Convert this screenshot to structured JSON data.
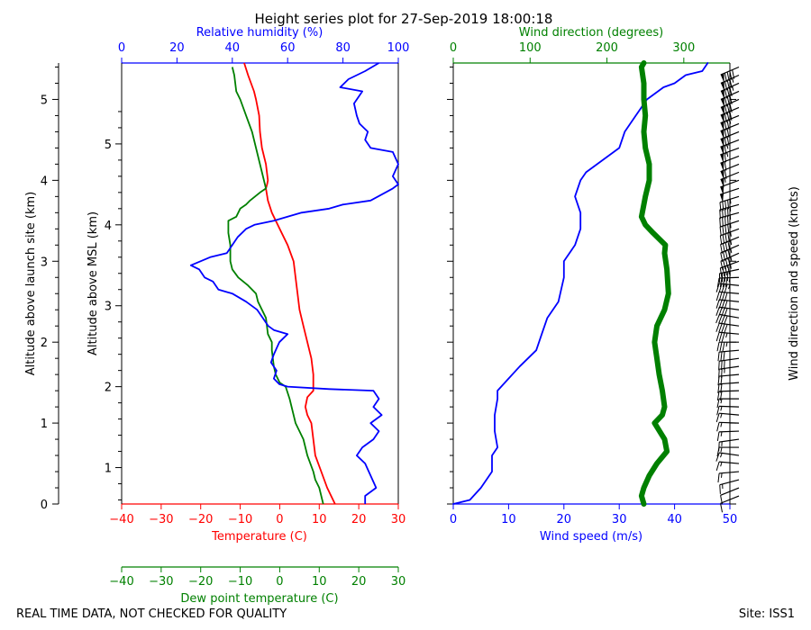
{
  "title": "Height series plot for 27-Sep-2019 18:00:18",
  "footer_left": "REAL TIME DATA, NOT CHECKED FOR QUALITY",
  "footer_right": "Site: ISS1",
  "colors": {
    "temperature": "#ff0000",
    "dewpoint": "#008000",
    "humidity": "#0000ff",
    "wind_speed": "#0000ff",
    "wind_direction": "#008000",
    "barbs": "#000000"
  },
  "chart_data": [
    {
      "type": "line",
      "panel": "thermo",
      "ylabel_outer": "Altitude above launch site (km)",
      "ylabel_inner": "Altitude above MSL (km)",
      "y_outer_ticks": [
        "0",
        "1",
        "2",
        "3",
        "4",
        "5"
      ],
      "y_inner_ticks": [
        "1",
        "2",
        "3",
        "4",
        "5"
      ],
      "ylim_agl_km": [
        0,
        5.45
      ],
      "msl_offset_km": 0.55,
      "axes": {
        "temperature": {
          "label": "Temperature (C)",
          "lim": [
            -40,
            30
          ],
          "ticks": [
            "−40",
            "−30",
            "−20",
            "−10",
            "0",
            "10",
            "20",
            "30"
          ]
        },
        "dewpoint": {
          "label": "Dew point temperature (C)",
          "lim": [
            -40,
            30
          ],
          "ticks": [
            "−40",
            "−30",
            "−20",
            "−10",
            "0",
            "10",
            "20",
            "30"
          ]
        },
        "humidity": {
          "label": "Relative humidity (%)",
          "lim": [
            0,
            100
          ],
          "ticks": [
            "0",
            "20",
            "40",
            "60",
            "80",
            "100"
          ]
        }
      },
      "series": [
        {
          "name": "Temperature (C)",
          "axis": "temperature",
          "color": "#ff0000",
          "points": [
            [
              14,
              0
            ],
            [
              12,
              0.2
            ],
            [
              10.5,
              0.4
            ],
            [
              9,
              0.6
            ],
            [
              8.5,
              0.8
            ],
            [
              8,
              1
            ],
            [
              7,
              1.1
            ],
            [
              6.5,
              1.2
            ],
            [
              7,
              1.32
            ],
            [
              8.5,
              1.4
            ],
            [
              8.5,
              1.5
            ],
            [
              8.5,
              1.6
            ],
            [
              8,
              1.8
            ],
            [
              7,
              2
            ],
            [
              6,
              2.2
            ],
            [
              5,
              2.4
            ],
            [
              4.5,
              2.6
            ],
            [
              4,
              2.8
            ],
            [
              3.5,
              3.0
            ],
            [
              2,
              3.2
            ],
            [
              0,
              3.4
            ],
            [
              -2,
              3.6
            ],
            [
              -3,
              3.75
            ],
            [
              -3.5,
              3.9
            ],
            [
              -3.2,
              3.95
            ],
            [
              -3,
              4.0
            ],
            [
              -3.5,
              4.2
            ],
            [
              -4.5,
              4.4
            ],
            [
              -5,
              4.6
            ],
            [
              -5.2,
              4.8
            ],
            [
              -6,
              5.0
            ],
            [
              -6.5,
              5.1
            ],
            [
              -8,
              5.3
            ],
            [
              -9,
              5.45
            ]
          ]
        },
        {
          "name": "Dew point temperature (C)",
          "axis": "dewpoint",
          "color": "#008000",
          "points": [
            [
              11,
              0
            ],
            [
              10,
              0.2
            ],
            [
              9,
              0.3
            ],
            [
              8.5,
              0.4
            ],
            [
              7,
              0.6
            ],
            [
              6,
              0.8
            ],
            [
              4,
              1.0
            ],
            [
              3,
              1.2
            ],
            [
              2.5,
              1.3
            ],
            [
              1.5,
              1.45
            ],
            [
              0,
              1.5
            ],
            [
              -1,
              1.6
            ],
            [
              -1.5,
              1.7
            ],
            [
              -2,
              1.9
            ],
            [
              -2,
              2.0
            ],
            [
              -3,
              2.1
            ],
            [
              -3.5,
              2.3
            ],
            [
              -4.5,
              2.4
            ],
            [
              -5.5,
              2.5
            ],
            [
              -6,
              2.6
            ],
            [
              -8,
              2.7
            ],
            [
              -10.5,
              2.8
            ],
            [
              -12,
              2.9
            ],
            [
              -12.5,
              3.0
            ],
            [
              -12.5,
              3.2
            ],
            [
              -13,
              3.35
            ],
            [
              -13,
              3.5
            ],
            [
              -11,
              3.55
            ],
            [
              -10.5,
              3.6
            ],
            [
              -10,
              3.65
            ],
            [
              -8.5,
              3.7
            ],
            [
              -7.5,
              3.75
            ],
            [
              -5,
              3.85
            ],
            [
              -3.5,
              3.9
            ],
            [
              -4,
              4.0
            ],
            [
              -5,
              4.2
            ],
            [
              -6,
              4.4
            ],
            [
              -7,
              4.6
            ],
            [
              -8.5,
              4.8
            ],
            [
              -10,
              5.0
            ],
            [
              -11,
              5.1
            ],
            [
              -11.5,
              5.3
            ],
            [
              -12,
              5.4
            ]
          ]
        },
        {
          "name": "Relative humidity (%)",
          "axis": "humidity",
          "color": "#0000ff",
          "points": [
            [
              88,
              0
            ],
            [
              88,
              0.1
            ],
            [
              92,
              0.2
            ],
            [
              90,
              0.35
            ],
            [
              88,
              0.5
            ],
            [
              85,
              0.6
            ],
            [
              87,
              0.7
            ],
            [
              91,
              0.8
            ],
            [
              93,
              0.9
            ],
            [
              90,
              1.0
            ],
            [
              94,
              1.1
            ],
            [
              91,
              1.2
            ],
            [
              93,
              1.3
            ],
            [
              91,
              1.4
            ],
            [
              75,
              1.42
            ],
            [
              60,
              1.45
            ],
            [
              57,
              1.48
            ],
            [
              55,
              1.55
            ],
            [
              56,
              1.65
            ],
            [
              54,
              1.75
            ],
            [
              55,
              1.85
            ],
            [
              57,
              2.0
            ],
            [
              60,
              2.1
            ],
            [
              55,
              2.15
            ],
            [
              53,
              2.2
            ],
            [
              51,
              2.3
            ],
            [
              49,
              2.4
            ],
            [
              45,
              2.5
            ],
            [
              40,
              2.6
            ],
            [
              35,
              2.65
            ],
            [
              33,
              2.75
            ],
            [
              30,
              2.8
            ],
            [
              28,
              2.9
            ],
            [
              25,
              2.95
            ],
            [
              32,
              3.05
            ],
            [
              38,
              3.1
            ],
            [
              40,
              3.2
            ],
            [
              42,
              3.3
            ],
            [
              45,
              3.4
            ],
            [
              48,
              3.45
            ],
            [
              55,
              3.5
            ],
            [
              60,
              3.55
            ],
            [
              65,
              3.6
            ],
            [
              75,
              3.65
            ],
            [
              80,
              3.7
            ],
            [
              90,
              3.75
            ],
            [
              98,
              3.9
            ],
            [
              100,
              3.95
            ],
            [
              98,
              4.05
            ],
            [
              100,
              4.2
            ],
            [
              98,
              4.35
            ],
            [
              90,
              4.4
            ],
            [
              88,
              4.5
            ],
            [
              89,
              4.6
            ],
            [
              86,
              4.7
            ],
            [
              85,
              4.8
            ],
            [
              84,
              4.95
            ],
            [
              87,
              5.1
            ],
            [
              79,
              5.15
            ],
            [
              82,
              5.25
            ],
            [
              88,
              5.35
            ],
            [
              93,
              5.45
            ]
          ]
        }
      ]
    },
    {
      "type": "line",
      "panel": "wind",
      "ylabel_right": "Wind direction and speed (knots)",
      "ylim_agl_km": [
        0,
        5.45
      ],
      "axes": {
        "wind_speed": {
          "label": "Wind speed (m/s)",
          "lim": [
            0,
            50
          ],
          "ticks": [
            "0",
            "10",
            "20",
            "30",
            "40",
            "50"
          ]
        },
        "wind_direction": {
          "label": "Wind direction (degrees)",
          "lim": [
            0,
            360
          ],
          "ticks": [
            "0",
            "100",
            "200",
            "300"
          ]
        }
      },
      "series": [
        {
          "name": "Wind speed (m/s)",
          "axis": "wind_speed",
          "color": "#0000ff",
          "points": [
            [
              0,
              0
            ],
            [
              3,
              0.05
            ],
            [
              5,
              0.2
            ],
            [
              7,
              0.4
            ],
            [
              7,
              0.6
            ],
            [
              8,
              0.7
            ],
            [
              7.5,
              0.9
            ],
            [
              7.5,
              1.1
            ],
            [
              8,
              1.3
            ],
            [
              8,
              1.4
            ],
            [
              10,
              1.55
            ],
            [
              12,
              1.7
            ],
            [
              15,
              1.9
            ],
            [
              16,
              2.1
            ],
            [
              17,
              2.3
            ],
            [
              19,
              2.5
            ],
            [
              20,
              2.8
            ],
            [
              20,
              3.0
            ],
            [
              22,
              3.2
            ],
            [
              23,
              3.4
            ],
            [
              23,
              3.6
            ],
            [
              22,
              3.8
            ],
            [
              23,
              4.0
            ],
            [
              24,
              4.1
            ],
            [
              27,
              4.25
            ],
            [
              30,
              4.4
            ],
            [
              31,
              4.6
            ],
            [
              33,
              4.8
            ],
            [
              35,
              5.0
            ],
            [
              38,
              5.15
            ],
            [
              40,
              5.2
            ],
            [
              42,
              5.3
            ],
            [
              45,
              5.35
            ],
            [
              46,
              5.45
            ]
          ]
        },
        {
          "name": "Wind direction (degrees)",
          "axis": "wind_direction",
          "color": "#008000",
          "style": "thick",
          "points": [
            [
              248,
              0
            ],
            [
              245,
              0.1
            ],
            [
              248,
              0.2
            ],
            [
              255,
              0.35
            ],
            [
              265,
              0.5
            ],
            [
              278,
              0.65
            ],
            [
              275,
              0.8
            ],
            [
              262,
              1.0
            ],
            [
              272,
              1.1
            ],
            [
              275,
              1.2
            ],
            [
              272,
              1.4
            ],
            [
              268,
              1.6
            ],
            [
              265,
              1.8
            ],
            [
              262,
              2.0
            ],
            [
              265,
              2.2
            ],
            [
              275,
              2.4
            ],
            [
              280,
              2.6
            ],
            [
              278,
              2.9
            ],
            [
              275,
              3.1
            ],
            [
              276,
              3.2
            ],
            [
              260,
              3.35
            ],
            [
              250,
              3.45
            ],
            [
              245,
              3.55
            ],
            [
              248,
              3.7
            ],
            [
              250,
              3.8
            ],
            [
              255,
              4.0
            ],
            [
              255,
              4.2
            ],
            [
              250,
              4.4
            ],
            [
              248,
              4.6
            ],
            [
              250,
              4.8
            ],
            [
              248,
              5.0
            ],
            [
              248,
              5.2
            ],
            [
              245,
              5.4
            ],
            [
              248,
              5.45
            ]
          ]
        }
      ],
      "barbs": {
        "levels_km": [
          0.1,
          0.2,
          0.3,
          0.4,
          0.5,
          0.6,
          0.7,
          0.8,
          0.9,
          1.0,
          1.1,
          1.2,
          1.3,
          1.4,
          1.5,
          1.6,
          1.7,
          1.8,
          1.9,
          2.0,
          2.1,
          2.2,
          2.3,
          2.4,
          2.5,
          2.6,
          2.7,
          2.8,
          2.9,
          3.0,
          3.1,
          3.2,
          3.3,
          3.4,
          3.5,
          3.6,
          3.7,
          3.8,
          3.9,
          4.0,
          4.1,
          4.2,
          4.3,
          4.4,
          4.5,
          4.6,
          4.7,
          4.8,
          4.9,
          5.0,
          5.1,
          5.2,
          5.3,
          5.4
        ],
        "speed_knots": [
          10,
          12,
          14,
          14,
          15,
          15,
          16,
          15,
          15,
          16,
          16,
          16,
          17,
          18,
          20,
          22,
          26,
          30,
          32,
          34,
          36,
          38,
          39,
          40,
          40,
          42,
          44,
          44,
          44,
          44,
          45,
          46,
          46,
          46,
          46,
          46,
          46,
          47,
          50,
          52,
          55,
          58,
          62,
          64,
          66,
          70,
          72,
          76,
          78,
          80,
          82,
          84,
          86,
          88
        ],
        "direction_deg": [
          248,
          248,
          255,
          265,
          275,
          278,
          270,
          262,
          268,
          272,
          275,
          272,
          270,
          268,
          266,
          265,
          262,
          262,
          265,
          270,
          275,
          278,
          280,
          278,
          276,
          275,
          276,
          268,
          258,
          250,
          246,
          247,
          248,
          250,
          252,
          255,
          255,
          253,
          252,
          250,
          248,
          248,
          249,
          250,
          249,
          248,
          248,
          248,
          247,
          246,
          246,
          246,
          246,
          247
        ]
      }
    }
  ]
}
